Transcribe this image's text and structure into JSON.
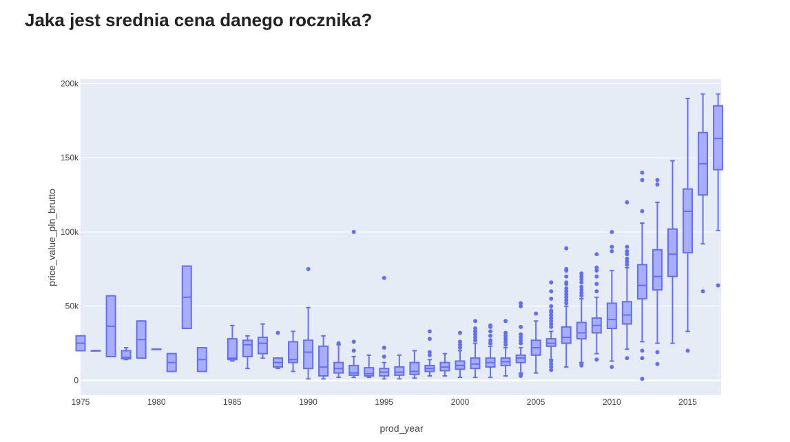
{
  "page": {
    "title": "Jaka jest srednia cena danego rocznika?"
  },
  "chart_data": {
    "type": "box",
    "title": "",
    "xlabel": "prod_year",
    "ylabel": "price_value_pln_brutto",
    "xlim": [
      1975,
      2017.2
    ],
    "ylim": [
      -10000,
      203000
    ],
    "x_ticks": [
      1975,
      1980,
      1985,
      1990,
      1995,
      2000,
      2005,
      2010,
      2015
    ],
    "y_ticks": [
      0,
      50000,
      100000,
      150000,
      200000
    ],
    "y_tick_labels": [
      "0",
      "50k",
      "100k",
      "150k",
      "200k"
    ],
    "grid": true,
    "colors": {
      "box_line": "#636efa",
      "box_fill": "#a8aefc",
      "plot_bg": "#e5ecf6",
      "grid": "#ffffff"
    },
    "boxes": [
      {
        "year": 1975,
        "min": 20000,
        "q1": 20000,
        "median": 25000,
        "q3": 30000,
        "max": 30000,
        "outliers": []
      },
      {
        "year": 1976,
        "min": 20000,
        "q1": 20000,
        "median": 20000,
        "q3": 20000,
        "max": 20000,
        "outliers": []
      },
      {
        "year": 1977,
        "min": 16000,
        "q1": 16000,
        "median": 36500,
        "q3": 57000,
        "max": 57000,
        "outliers": []
      },
      {
        "year": 1978,
        "min": 14000,
        "q1": 14500,
        "median": 15500,
        "q3": 20000,
        "max": 22000,
        "outliers": []
      },
      {
        "year": 1979,
        "min": 15000,
        "q1": 15000,
        "median": 27500,
        "q3": 40000,
        "max": 40000,
        "outliers": []
      },
      {
        "year": 1980,
        "min": 21000,
        "q1": 21000,
        "median": 21000,
        "q3": 21000,
        "max": 21000,
        "outliers": []
      },
      {
        "year": 1981,
        "min": 6000,
        "q1": 6000,
        "median": 12000,
        "q3": 18000,
        "max": 18000,
        "outliers": []
      },
      {
        "year": 1982,
        "min": 35000,
        "q1": 35000,
        "median": 56000,
        "q3": 77000,
        "max": 77000,
        "outliers": []
      },
      {
        "year": 1983,
        "min": 6000,
        "q1": 6000,
        "median": 14000,
        "q3": 22000,
        "max": 22000,
        "outliers": []
      },
      {
        "year": 1985,
        "min": 13000,
        "q1": 14000,
        "median": 15000,
        "q3": 28000,
        "max": 37000,
        "outliers": []
      },
      {
        "year": 1986,
        "min": 8000,
        "q1": 16000,
        "median": 24000,
        "q3": 27000,
        "max": 30000,
        "outliers": []
      },
      {
        "year": 1987,
        "min": 15000,
        "q1": 18000,
        "median": 25000,
        "q3": 29000,
        "max": 38000,
        "outliers": []
      },
      {
        "year": 1988,
        "min": 8000,
        "q1": 9000,
        "median": 12000,
        "q3": 15000,
        "max": 15000,
        "outliers": [
          32000
        ]
      },
      {
        "year": 1989,
        "min": 6000,
        "q1": 12000,
        "median": 14000,
        "q3": 26000,
        "max": 33000,
        "outliers": []
      },
      {
        "year": 1990,
        "min": 1000,
        "q1": 8000,
        "median": 19000,
        "q3": 27000,
        "max": 49000,
        "outliers": [
          75000
        ]
      },
      {
        "year": 1991,
        "min": 1000,
        "q1": 3000,
        "median": 9000,
        "q3": 23000,
        "max": 30000,
        "outliers": []
      },
      {
        "year": 1992,
        "min": 2000,
        "q1": 5000,
        "median": 8000,
        "q3": 12000,
        "max": 24000,
        "outliers": [
          25000
        ]
      },
      {
        "year": 1993,
        "min": 2000,
        "q1": 3500,
        "median": 5000,
        "q3": 10000,
        "max": 16000,
        "outliers": [
          20000,
          26000,
          100000
        ]
      },
      {
        "year": 1994,
        "min": 2000,
        "q1": 3000,
        "median": 4500,
        "q3": 8500,
        "max": 17000,
        "outliers": []
      },
      {
        "year": 1995,
        "min": 1000,
        "q1": 3000,
        "median": 5500,
        "q3": 8000,
        "max": 12000,
        "outliers": [
          16000,
          22000,
          69000
        ]
      },
      {
        "year": 1996,
        "min": 1000,
        "q1": 3500,
        "median": 5500,
        "q3": 9000,
        "max": 17000,
        "outliers": []
      },
      {
        "year": 1997,
        "min": 1500,
        "q1": 4000,
        "median": 6000,
        "q3": 12000,
        "max": 20000,
        "outliers": []
      },
      {
        "year": 1998,
        "min": 3000,
        "q1": 6000,
        "median": 8000,
        "q3": 10000,
        "max": 14000,
        "outliers": [
          17000,
          19000,
          28000,
          33000
        ]
      },
      {
        "year": 1999,
        "min": 3000,
        "q1": 6500,
        "median": 9000,
        "q3": 12000,
        "max": 18000,
        "outliers": []
      },
      {
        "year": 2000,
        "min": 2000,
        "q1": 7500,
        "median": 10000,
        "q3": 13000,
        "max": 20000,
        "outliers": [
          22000,
          24000,
          26000,
          32000
        ]
      },
      {
        "year": 2001,
        "min": 2000,
        "q1": 8000,
        "median": 11000,
        "q3": 15000,
        "max": 25000,
        "outliers": [
          27000,
          29000,
          31000,
          33000,
          35000,
          40000
        ]
      },
      {
        "year": 2002,
        "min": 2000,
        "q1": 9000,
        "median": 12000,
        "q3": 15000,
        "max": 23000,
        "outliers": [
          25000,
          27000,
          30000,
          33000,
          36000,
          37000
        ]
      },
      {
        "year": 2003,
        "min": 3000,
        "q1": 10000,
        "median": 12500,
        "q3": 15000,
        "max": 22000,
        "outliers": [
          24000,
          26000,
          28000,
          30000,
          32000,
          40000
        ]
      },
      {
        "year": 2004,
        "min": 5000,
        "q1": 12000,
        "median": 15000,
        "q3": 17000,
        "max": 22000,
        "outliers": [
          3000,
          4000,
          25000,
          27000,
          29000,
          31000,
          36000,
          50000,
          52000
        ]
      },
      {
        "year": 2005,
        "min": 5000,
        "q1": 17000,
        "median": 22000,
        "q3": 27000,
        "max": 40000,
        "outliers": [
          45000
        ]
      },
      {
        "year": 2006,
        "min": 14000,
        "q1": 23000,
        "median": 25000,
        "q3": 28000,
        "max": 33000,
        "outliers": [
          7000,
          9000,
          11000,
          13000,
          36000,
          38000,
          40000,
          42000,
          44000,
          46000,
          47000,
          50000,
          55000,
          60000,
          66000
        ]
      },
      {
        "year": 2007,
        "min": 9000,
        "q1": 25000,
        "median": 29000,
        "q3": 36000,
        "max": 50000,
        "outliers": [
          52000,
          54000,
          56000,
          58000,
          60000,
          62000,
          65000,
          66000,
          70000,
          74000,
          75000,
          89000
        ]
      },
      {
        "year": 2008,
        "min": 12000,
        "q1": 28000,
        "median": 32000,
        "q3": 39000,
        "max": 55000,
        "outliers": [
          10000,
          11000,
          57000,
          59000,
          61000,
          63000,
          66000,
          68000,
          70000,
          72000
        ]
      },
      {
        "year": 2009,
        "min": 18000,
        "q1": 32000,
        "median": 37000,
        "q3": 42000,
        "max": 56000,
        "outliers": [
          14000,
          60000,
          65000,
          70000,
          74000,
          76000,
          85000
        ]
      },
      {
        "year": 2010,
        "min": 13000,
        "q1": 35000,
        "median": 41000,
        "q3": 52000,
        "max": 74000,
        "outliers": [
          9000,
          87000,
          90000,
          100000
        ]
      },
      {
        "year": 2011,
        "min": 21000,
        "q1": 38000,
        "median": 44000,
        "q3": 53000,
        "max": 76000,
        "outliers": [
          15000,
          78000,
          80000,
          82000,
          85000,
          87000,
          90000,
          120000
        ]
      },
      {
        "year": 2012,
        "min": 26000,
        "q1": 55000,
        "median": 64000,
        "q3": 78000,
        "max": 106000,
        "outliers": [
          1000,
          15000,
          20000,
          114000,
          135000,
          140000
        ]
      },
      {
        "year": 2013,
        "min": 25000,
        "q1": 61000,
        "median": 70000,
        "q3": 88000,
        "max": 120000,
        "outliers": [
          11000,
          19000,
          132000,
          135000
        ]
      },
      {
        "year": 2014,
        "min": 25000,
        "q1": 70000,
        "median": 85000,
        "q3": 102000,
        "max": 148000,
        "outliers": []
      },
      {
        "year": 2015,
        "min": 33000,
        "q1": 86000,
        "median": 114000,
        "q3": 129000,
        "max": 190000,
        "outliers": [
          20000
        ]
      },
      {
        "year": 2016,
        "min": 92000,
        "q1": 125000,
        "median": 146000,
        "q3": 167000,
        "max": 193000,
        "outliers": [
          60000
        ]
      },
      {
        "year": 2017,
        "min": 101000,
        "q1": 142000,
        "median": 163000,
        "q3": 185000,
        "max": 193000,
        "outliers": [
          64000
        ]
      }
    ]
  }
}
